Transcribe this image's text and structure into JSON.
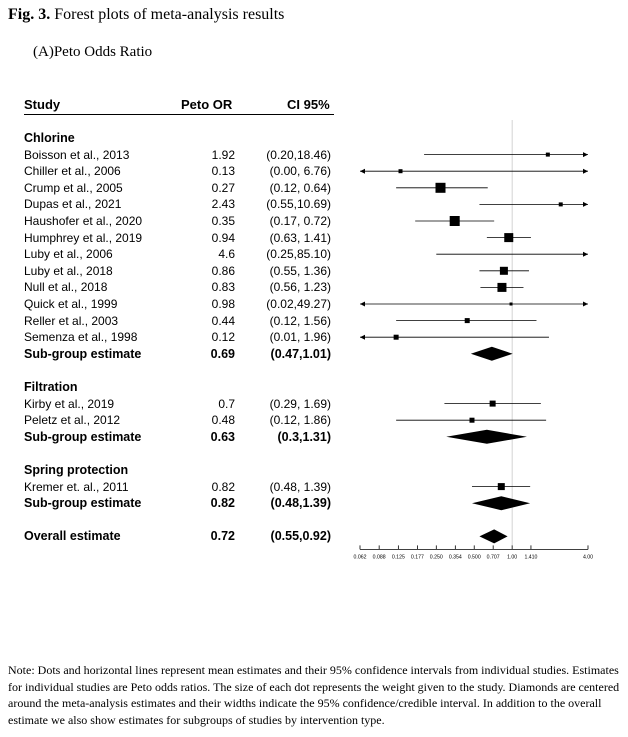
{
  "figure": {
    "label": "Fig. 3.",
    "caption": "Forest plots of meta-analysis results",
    "panel_title": "(A)Peto Odds Ratio"
  },
  "table_headers": {
    "study": "Study",
    "or": "Peto OR",
    "ci": "CI 95%"
  },
  "note": "Note: Dots and horizontal lines represent mean estimates and their 95% confidence intervals from individual studies. Estimates for individual studies are Peto odds ratios. The size of each dot represents the weight given to the study. Diamonds are centered around the meta-analysis estimates and their widths indicate the 95% confidence/credible interval. In addition to the overall estimate we also show estimates for subgroups of studies by intervention type.",
  "chart_data": {
    "type": "forest",
    "x_scale": "log",
    "xlim": [
      0.062,
      4.0
    ],
    "reference_line": 1.0,
    "x_ticks": [
      "0.062",
      "0.088",
      "0.125",
      "0.177",
      "0.250",
      "0.354",
      "0.500",
      "0.707",
      "1.00",
      "1.410",
      "4.00"
    ],
    "groups": [
      {
        "name": "Chlorine",
        "studies": [
          {
            "study": "Boisson et al., 2013",
            "or": 1.92,
            "or_text": "1.92",
            "ci_low": 0.2,
            "ci_high": 18.46,
            "ci_text": "(0.20,18.46)",
            "size": 2
          },
          {
            "study": "Chiller et al., 2006",
            "or": 0.13,
            "or_text": "0.13",
            "ci_low": 0.0,
            "ci_high": 6.76,
            "ci_text": "(0.00, 6.76)",
            "size": 2
          },
          {
            "study": "Crump et al., 2005",
            "or": 0.27,
            "or_text": "0.27",
            "ci_low": 0.12,
            "ci_high": 0.64,
            "ci_text": "(0.12, 0.64)",
            "size": 5
          },
          {
            "study": "Dupas et al., 2021",
            "or": 2.43,
            "or_text": "2.43",
            "ci_low": 0.55,
            "ci_high": 10.69,
            "ci_text": "(0.55,10.69)",
            "size": 2
          },
          {
            "study": "Haushofer et al., 2020",
            "or": 0.35,
            "or_text": "0.35",
            "ci_low": 0.17,
            "ci_high": 0.72,
            "ci_text": "(0.17, 0.72)",
            "size": 5
          },
          {
            "study": "Humphrey et al., 2019",
            "or": 0.94,
            "or_text": "0.94",
            "ci_low": 0.63,
            "ci_high": 1.41,
            "ci_text": "(0.63, 1.41)",
            "size": 4.5
          },
          {
            "study": "Luby et al., 2006",
            "or": 4.6,
            "or_text": "4.6",
            "ci_low": 0.25,
            "ci_high": 85.1,
            "ci_text": "(0.25,85.10)",
            "size": 0
          },
          {
            "study": "Luby et al., 2018",
            "or": 0.86,
            "or_text": "0.86",
            "ci_low": 0.55,
            "ci_high": 1.36,
            "ci_text": "(0.55, 1.36)",
            "size": 4
          },
          {
            "study": "Null et al., 2018",
            "or": 0.83,
            "or_text": "0.83",
            "ci_low": 0.56,
            "ci_high": 1.23,
            "ci_text": "(0.56, 1.23)",
            "size": 4.5
          },
          {
            "study": "Quick et al., 1999",
            "or": 0.98,
            "or_text": "0.98",
            "ci_low": 0.02,
            "ci_high": 49.27,
            "ci_text": "(0.02,49.27)",
            "size": 1.5
          },
          {
            "study": "Reller et al., 2003",
            "or": 0.44,
            "or_text": "0.44",
            "ci_low": 0.12,
            "ci_high": 1.56,
            "ci_text": "(0.12, 1.56)",
            "size": 2.5
          },
          {
            "study": "Semenza et al., 1998",
            "or": 0.12,
            "or_text": "0.12",
            "ci_low": 0.01,
            "ci_high": 1.96,
            "ci_text": "(0.01, 1.96)",
            "size": 2.5
          }
        ],
        "estimate": {
          "label": "Sub-group estimate",
          "or": 0.69,
          "or_text": "0.69",
          "ci_low": 0.47,
          "ci_high": 1.01,
          "ci_text": "(0.47,1.01)"
        }
      },
      {
        "name": "Filtration",
        "studies": [
          {
            "study": "Kirby et al., 2019",
            "or": 0.7,
            "or_text": "0.7",
            "ci_low": 0.29,
            "ci_high": 1.69,
            "ci_text": "(0.29, 1.69)",
            "size": 3
          },
          {
            "study": "Peletz et al., 2012",
            "or": 0.48,
            "or_text": "0.48",
            "ci_low": 0.12,
            "ci_high": 1.86,
            "ci_text": "(0.12, 1.86)",
            "size": 2.5
          }
        ],
        "estimate": {
          "label": "Sub-group estimate",
          "or": 0.63,
          "or_text": "0.63",
          "ci_low": 0.3,
          "ci_high": 1.31,
          "ci_text": "(0.3,1.31)"
        }
      },
      {
        "name": "Spring protection",
        "studies": [
          {
            "study": "Kremer et. al., 2011",
            "or": 0.82,
            "or_text": "0.82",
            "ci_low": 0.48,
            "ci_high": 1.39,
            "ci_text": "(0.48, 1.39)",
            "size": 3.5
          }
        ],
        "estimate": {
          "label": "Sub-group estimate",
          "or": 0.82,
          "or_text": "0.82",
          "ci_low": 0.48,
          "ci_high": 1.39,
          "ci_text": "(0.48,1.39)"
        }
      }
    ],
    "overall": {
      "label": "Overall estimate",
      "or": 0.72,
      "or_text": "0.72",
      "ci_low": 0.55,
      "ci_high": 0.92,
      "ci_text": "(0.55,0.92)"
    }
  }
}
